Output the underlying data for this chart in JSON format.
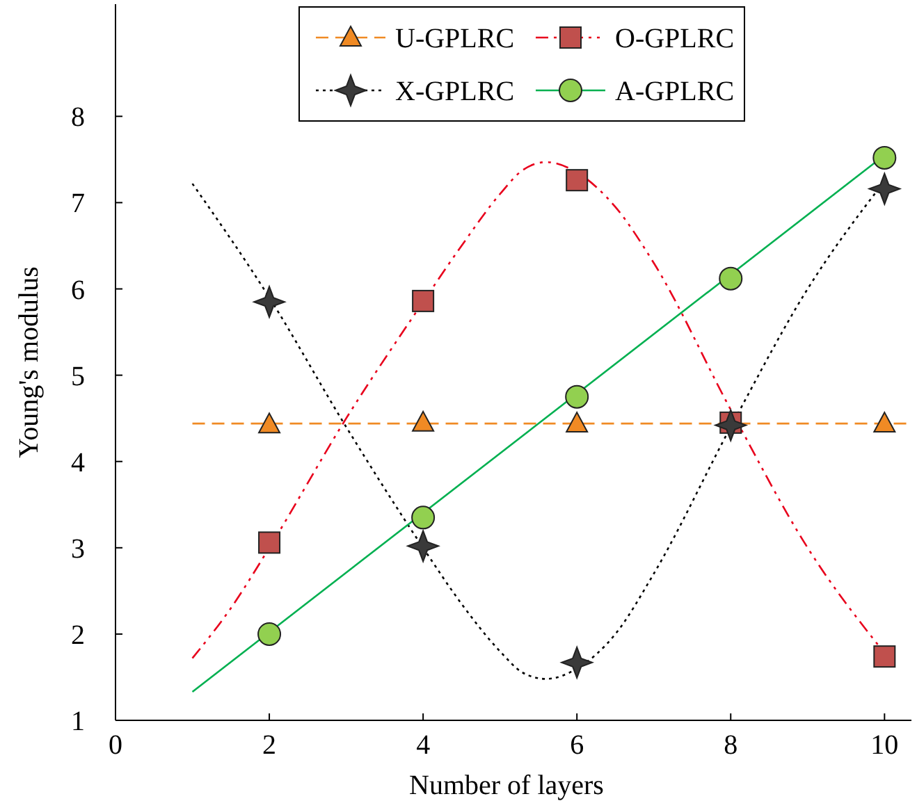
{
  "chart_data": {
    "type": "scatter",
    "xlabel": "Number of layers",
    "ylabel": "Young's modulus",
    "xlim": [
      0,
      10.35
    ],
    "ylim": [
      1,
      9.3
    ],
    "xticks": [
      0,
      2,
      4,
      6,
      8,
      10
    ],
    "yticks": [
      1,
      2,
      3,
      4,
      5,
      6,
      7,
      8
    ],
    "legend": "top",
    "series": [
      {
        "name": "U-GPLRC",
        "marker": "triangle",
        "color": "#f08a24",
        "x": [
          2,
          4,
          6,
          10
        ],
        "values": [
          4.43,
          4.45,
          4.44,
          4.44
        ]
      },
      {
        "name": "O-GPLRC",
        "marker": "square",
        "color": "#c0504d",
        "x": [
          2,
          4,
          6,
          8,
          10
        ],
        "values": [
          3.06,
          5.86,
          7.26,
          4.45,
          1.74
        ]
      },
      {
        "name": "X-GPLRC",
        "marker": "star",
        "color": "#3a3a3a",
        "x": [
          2,
          4,
          6,
          8,
          10
        ],
        "values": [
          5.85,
          3.02,
          1.67,
          4.42,
          7.16
        ]
      },
      {
        "name": "A-GPLRC",
        "marker": "circle",
        "color": "#92d050",
        "x": [
          2,
          4,
          6,
          8,
          10
        ],
        "values": [
          2.0,
          3.35,
          4.75,
          6.12,
          7.52
        ]
      },
      {
        "type": "line",
        "color": "#f08a24",
        "line_style": "dashed",
        "x": [
          1,
          10.35
        ],
        "values": [
          4.44,
          4.44
        ]
      },
      {
        "type": "line",
        "color": "#e8001c",
        "line_style": "dashdot",
        "x": [
          1,
          1.5,
          2,
          3,
          4,
          4.5,
          5,
          5.3,
          5.6,
          6,
          6.5,
          7,
          8,
          9,
          10
        ],
        "values": [
          1.72,
          2.3,
          3.0,
          4.5,
          5.85,
          6.5,
          7.1,
          7.38,
          7.47,
          7.35,
          6.95,
          6.3,
          4.6,
          3.0,
          1.78
        ]
      },
      {
        "type": "line",
        "color": "#000000",
        "line_style": "dotted",
        "x": [
          1,
          2,
          3,
          4,
          4.5,
          5,
          5.3,
          5.6,
          6,
          6.5,
          7,
          8,
          9,
          10
        ],
        "values": [
          7.22,
          5.9,
          4.4,
          3.0,
          2.35,
          1.8,
          1.55,
          1.48,
          1.6,
          2.0,
          2.7,
          4.4,
          6.0,
          7.25
        ]
      },
      {
        "type": "line",
        "color": "#00b050",
        "line_style": "solid",
        "x": [
          1,
          10
        ],
        "values": [
          1.33,
          7.55
        ]
      }
    ]
  }
}
